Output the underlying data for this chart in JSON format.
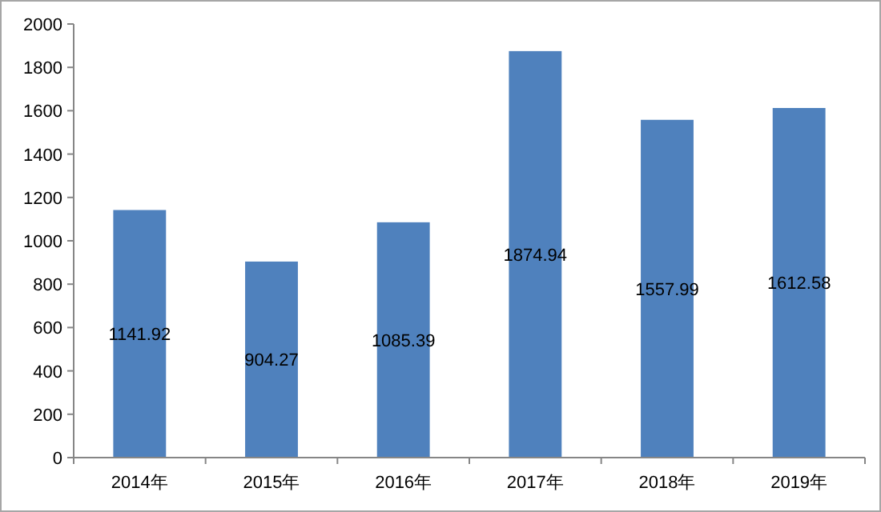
{
  "chart_data": {
    "type": "bar",
    "categories": [
      "2014年",
      "2015年",
      "2016年",
      "2017年",
      "2018年",
      "2019年"
    ],
    "values": [
      1141.92,
      904.27,
      1085.39,
      1874.94,
      1557.99,
      1612.58
    ],
    "color": "#4f81bd",
    "ylim": [
      0,
      2000
    ],
    "yticks": [
      0,
      200,
      400,
      600,
      800,
      1000,
      1200,
      1400,
      1600,
      1800,
      2000
    ],
    "data_labels": true
  }
}
